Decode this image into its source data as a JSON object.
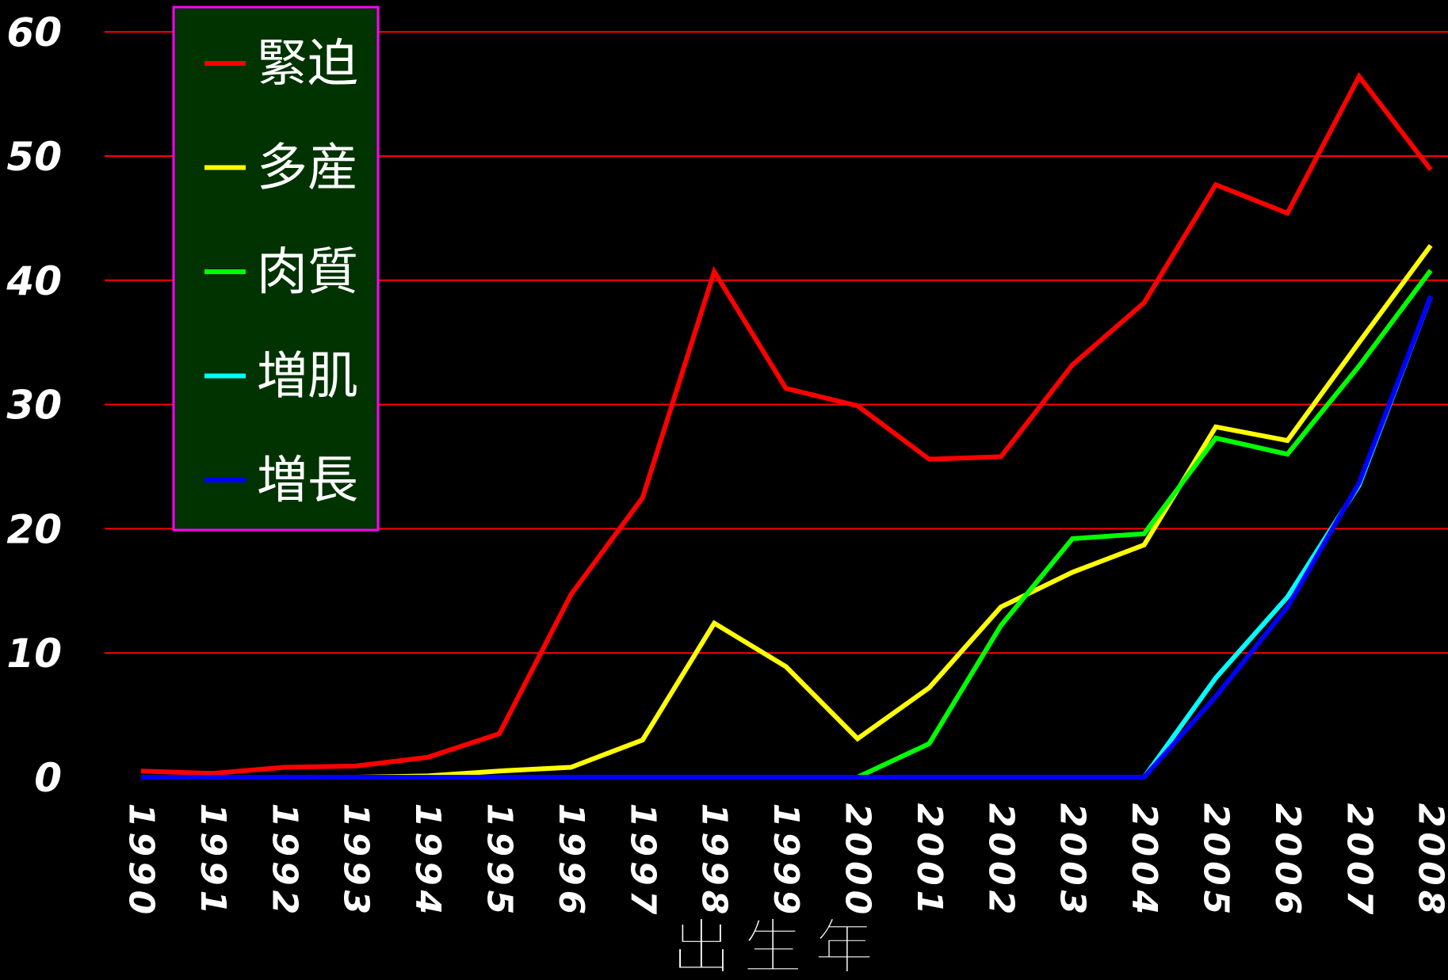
{
  "chart_data": {
    "type": "line",
    "title": "",
    "xlabel": "出生年",
    "ylabel": "",
    "x": [
      "1990",
      "1991",
      "1992",
      "1993",
      "1994",
      "1995",
      "1996",
      "1997",
      "1998",
      "1999",
      "2000",
      "2001",
      "2002",
      "2003",
      "2004",
      "2005",
      "2006",
      "2007",
      "2008"
    ],
    "yticks": [
      "0",
      "10",
      "20",
      "30",
      "40",
      "50",
      "60"
    ],
    "ylim": [
      0,
      60
    ],
    "grid": "horizontal",
    "legend_position": "top-left",
    "background": "#000000",
    "grid_color": "#ff0000",
    "legend_bg": "#003300",
    "legend_border": "#ff00ff",
    "series": [
      {
        "name": "緊迫",
        "color": "#ff0000",
        "values": [
          0.5,
          0.3,
          0.8,
          0.9,
          1.6,
          3.5,
          14.7,
          22.5,
          40.7,
          31.3,
          29.9,
          25.6,
          25.8,
          33.2,
          38.2,
          47.7,
          45.4,
          56.4,
          48.9
        ]
      },
      {
        "name": "多産",
        "color": "#ffff00",
        "values": [
          0,
          0,
          0,
          0,
          0.1,
          0.5,
          0.8,
          3.0,
          12.4,
          8.9,
          3.1,
          7.2,
          13.7,
          16.5,
          18.7,
          28.2,
          27.1,
          35.0,
          42.8
        ]
      },
      {
        "name": "肉質",
        "color": "#00ff00",
        "values": [
          0,
          0,
          0,
          0,
          0,
          0,
          0,
          0,
          0,
          0,
          0,
          2.7,
          12.2,
          19.2,
          19.6,
          27.3,
          26.0,
          33.1,
          40.8
        ]
      },
      {
        "name": "増肌",
        "color": "#00ffff",
        "values": [
          0,
          0,
          0,
          0,
          0,
          0,
          0,
          0,
          0,
          0,
          0,
          0,
          0,
          0,
          0,
          8.0,
          14.5,
          23.5,
          38.7
        ]
      },
      {
        "name": "増長",
        "color": "#0000ff",
        "values": [
          0,
          0,
          0,
          0,
          0,
          0,
          0,
          0,
          0,
          0,
          0,
          0,
          0,
          0,
          0,
          6.5,
          13.7,
          23.7,
          38.7
        ]
      }
    ]
  }
}
